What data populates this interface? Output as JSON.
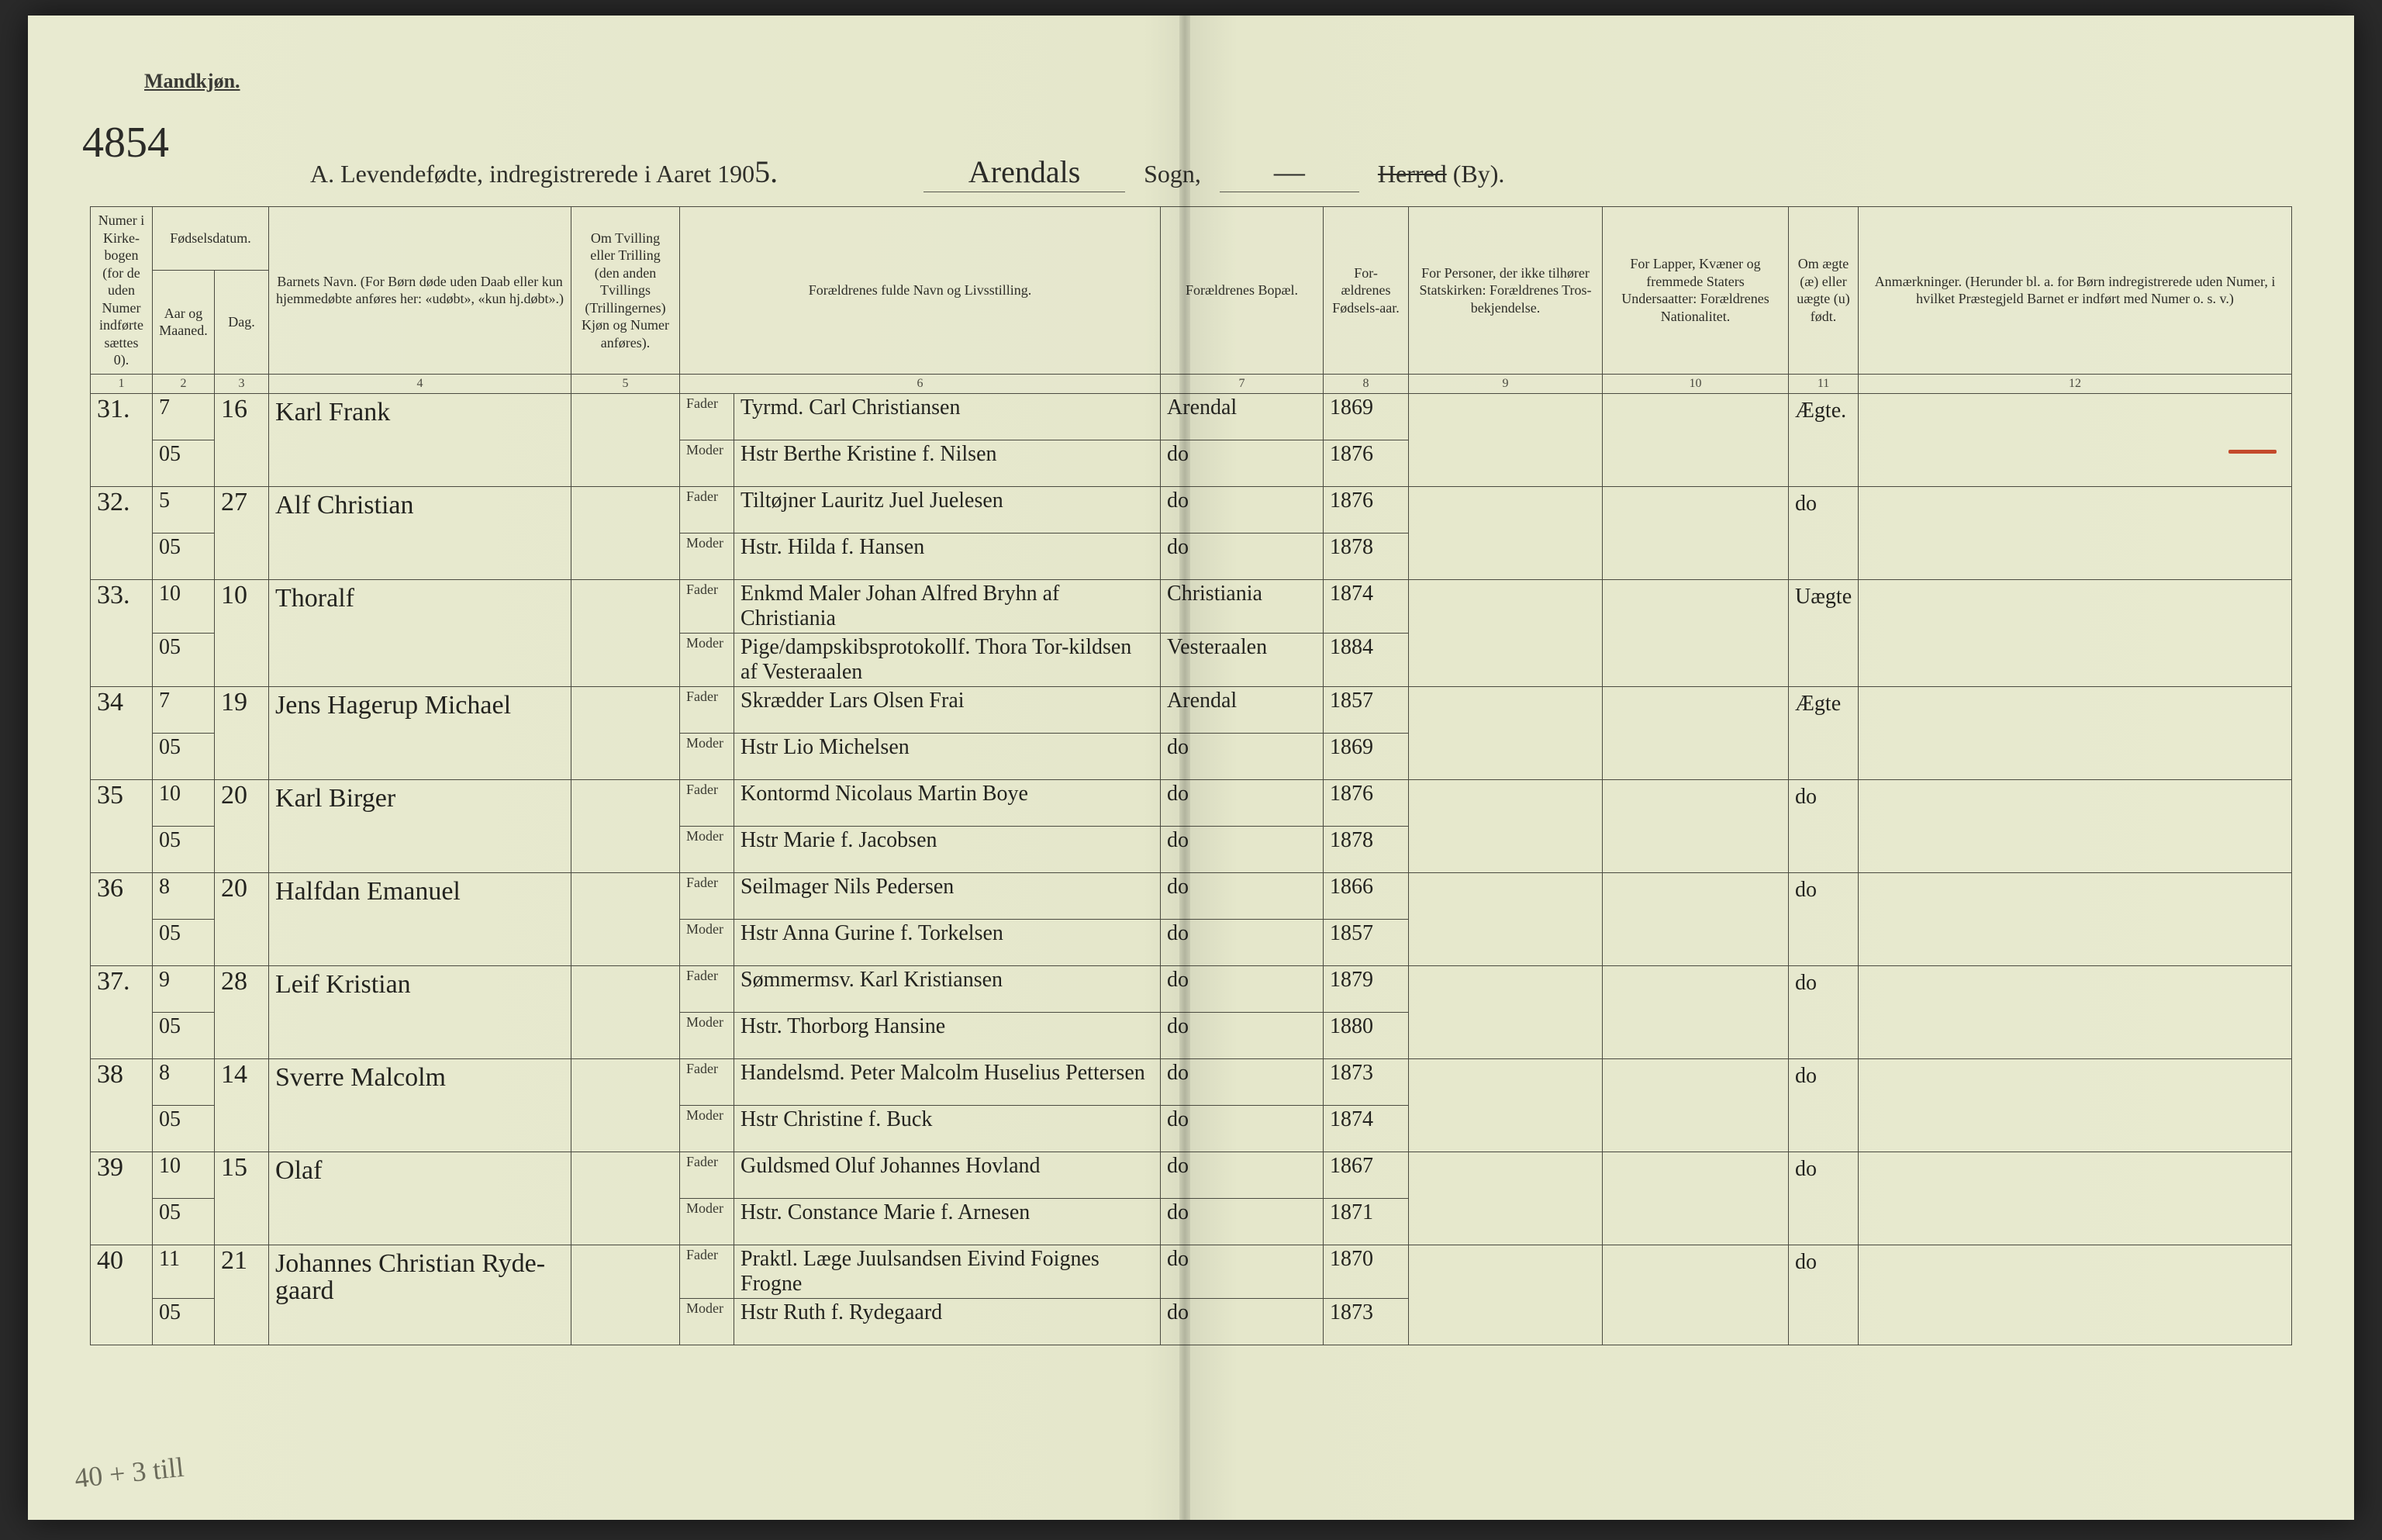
{
  "header": {
    "gender_label": "Mandkjøn.",
    "page_handnote": "4854",
    "title_printed_a": "A.  Levendefødte, indregistrerede i Aaret 190",
    "year_suffix_hand": "5.",
    "sogn_value_hand": "Arendals",
    "sogn_label": "Sogn,",
    "sogn_blank_hand": "—",
    "herred_struck": "Herred",
    "herred_by": "(By)."
  },
  "columns": {
    "c1": "Numer i Kirke-bogen (for de uden Numer indførte sættes 0).",
    "c2_group": "Fødselsdatum.",
    "c2a": "Aar og Maaned.",
    "c2b": "Dag.",
    "c4": "Barnets Navn.\n(For Børn døde uden Daab eller kun hjemmedøbte anføres her: «udøbt», «kun hj.døbt».)",
    "c5": "Om Tvilling eller Trilling (den anden Tvillings (Trillingernes) Kjøn og Numer anføres).",
    "c6": "Forældrenes fulde Navn og Livsstilling.",
    "c7": "Forældrenes Bopæl.",
    "c8": "For-ældrenes Fødsels-aar.",
    "c9": "For Personer, der ikke tilhører Statskirken: Forældrenes Tros-bekjendelse.",
    "c10": "For Lapper, Kvæner og fremmede Staters Undersaatter: Forældrenes Nationalitet.",
    "c11": "Om ægte (æ) eller uægte (u) født.",
    "c12": "Anmærkninger.\n(Herunder bl. a. for Børn indregistrerede uden Numer, i hvilket Præstegjeld Barnet er indført med Numer o. s. v.)",
    "nums": [
      "1",
      "2",
      "3",
      "4",
      "5",
      "6",
      "7",
      "8",
      "9",
      "10",
      "11",
      "12"
    ]
  },
  "fm_labels": {
    "father": "Fader",
    "mother": "Moder"
  },
  "rows": [
    {
      "num": "31.",
      "ym": "7\n05",
      "day": "16",
      "child": "Karl Frank",
      "father": "Tyrmd. Carl Christiansen",
      "mother": "Hstr Berthe Kristine f. Nilsen",
      "f_res": "Arendal",
      "m_res": "do",
      "f_year": "1869",
      "m_year": "1876",
      "col11": "Ægte."
    },
    {
      "num": "32.",
      "ym": "5\n05",
      "day": "27",
      "child": "Alf Christian",
      "father": "Tiltøjner Lauritz Juel Juelesen",
      "mother": "Hstr. Hilda f. Hansen",
      "f_res": "do",
      "m_res": "do",
      "f_year": "1876",
      "m_year": "1878",
      "col11": "do"
    },
    {
      "num": "33.",
      "ym": "10\n05",
      "day": "10",
      "child": "Thoralf",
      "father": "Enkmd Maler Johan Alfred Bryhn af Christiania",
      "mother": "Pige/dampskibsprotokollf. Thora Tor-kildsen af Vesteraalen",
      "f_res": "Christiania",
      "m_res": "Vesteraalen",
      "f_year": "1874",
      "m_year": "1884",
      "col11": "Uægte"
    },
    {
      "num": "34",
      "ym": "7\n05",
      "day": "19",
      "child": "Jens Hagerup Michael",
      "father": "Skrædder Lars Olsen Frai",
      "mother": "Hstr Lio Michelsen",
      "f_res": "Arendal",
      "m_res": "do",
      "f_year": "1857",
      "m_year": "1869",
      "col11": "Ægte"
    },
    {
      "num": "35",
      "ym": "10\n05",
      "day": "20",
      "child": "Karl Birger",
      "father": "Kontormd Nicolaus Martin Boye",
      "mother": "Hstr Marie f. Jacobsen",
      "f_res": "do",
      "m_res": "do",
      "f_year": "1876",
      "m_year": "1878",
      "col11": "do"
    },
    {
      "num": "36",
      "ym": "8\n05",
      "day": "20",
      "child": "Halfdan Emanuel",
      "father": "Seilmager Nils Pedersen",
      "mother": "Hstr Anna Gurine f. Torkelsen",
      "f_res": "do",
      "m_res": "do",
      "f_year": "1866",
      "m_year": "1857",
      "col11": "do"
    },
    {
      "num": "37.",
      "ym": "9\n05",
      "day": "28",
      "child": "Leif Kristian",
      "father": "Sømmermsv. Karl Kristiansen",
      "mother": "Hstr. Thorborg Hansine",
      "f_res": "do",
      "m_res": "do",
      "f_year": "1879",
      "m_year": "1880",
      "col11": "do"
    },
    {
      "num": "38",
      "ym": "8\n05",
      "day": "14",
      "child": "Sverre Malcolm",
      "father": "Handelsmd. Peter Malcolm Huselius Pettersen",
      "mother": "Hstr Christine f. Buck",
      "f_res": "do",
      "m_res": "do",
      "f_year": "1873",
      "m_year": "1874",
      "col11": "do"
    },
    {
      "num": "39",
      "ym": "10\n05",
      "day": "15",
      "child": "Olaf",
      "father": "Guldsmed Oluf Johannes Hovland",
      "mother": "Hstr. Constance Marie f. Arnesen",
      "f_res": "do",
      "m_res": "do",
      "f_year": "1867",
      "m_year": "1871",
      "col11": "do"
    },
    {
      "num": "40",
      "ym": "11\n05",
      "day": "21",
      "child": "Johannes Christian Ryde-gaard",
      "father": "Praktl. Læge Juulsandsen Eivind Foignes Frogne",
      "mother": "Hstr Ruth f. Rydegaard",
      "f_res": "do",
      "m_res": "do",
      "f_year": "1870",
      "m_year": "1873",
      "col11": "do"
    }
  ],
  "footnote": "40 + 3 till",
  "styling": {
    "page_bg_left": "#e8ead0",
    "page_bg_mid": "#d8dac0",
    "border_color": "#4a4a40",
    "ink_color": "#23231f",
    "print_color": "#2f2f2a",
    "red_mark": "#c44a2b",
    "script_font": "Brush Script MT",
    "header_fontsize": 32,
    "body_fontsize": 20,
    "hand_fontsize": 34
  }
}
